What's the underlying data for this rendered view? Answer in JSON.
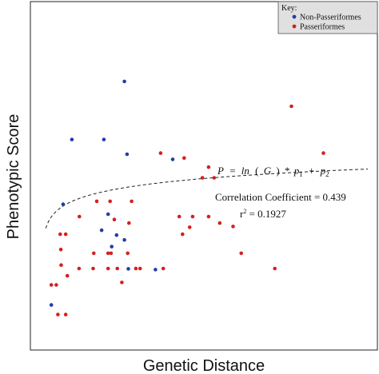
{
  "chart_data": {
    "type": "scatter",
    "title": "",
    "xlabel": "Genetic Distance",
    "ylabel": "Phenotypic Score",
    "xlim": [
      0,
      100
    ],
    "ylim": [
      0,
      100
    ],
    "grid": false,
    "legend": {
      "title": "Key:",
      "position": "top-right",
      "entries": [
        {
          "label": "Non-Passeriformes",
          "color": "#1f3fa8"
        },
        {
          "label": "Passeriformes",
          "color": "#d42020"
        }
      ]
    },
    "series": [
      {
        "name": "Non-Passeriformes",
        "color": "#1f3fa8",
        "points": [
          [
            25.4,
            88.1
          ],
          [
            9.3,
            66.4
          ],
          [
            19.1,
            66.4
          ],
          [
            26.2,
            60.9
          ],
          [
            40.2,
            59.0
          ],
          [
            6.6,
            42.2
          ],
          [
            20.4,
            38.5
          ],
          [
            18.4,
            32.5
          ],
          [
            23.0,
            30.7
          ],
          [
            25.4,
            28.9
          ],
          [
            21.5,
            26.4
          ],
          [
            26.6,
            18.1
          ],
          [
            34.9,
            17.8
          ],
          [
            3.0,
            4.6
          ]
        ]
      },
      {
        "name": "Passeriformes",
        "color": "#d42020",
        "points": [
          [
            76.6,
            78.8
          ],
          [
            36.5,
            61.3
          ],
          [
            43.7,
            59.5
          ],
          [
            86.4,
            61.3
          ],
          [
            51.2,
            56.1
          ],
          [
            49.3,
            52.1
          ],
          [
            52.9,
            52.1
          ],
          [
            16.9,
            43.3
          ],
          [
            21.0,
            43.3
          ],
          [
            27.6,
            43.3
          ],
          [
            42.2,
            37.6
          ],
          [
            46.3,
            37.6
          ],
          [
            51.2,
            37.6
          ],
          [
            11.6,
            37.6
          ],
          [
            22.3,
            36.5
          ],
          [
            26.8,
            35.2
          ],
          [
            45.4,
            33.6
          ],
          [
            54.6,
            35.2
          ],
          [
            58.7,
            33.9
          ],
          [
            5.7,
            31.0
          ],
          [
            7.4,
            31.0
          ],
          [
            43.2,
            31.0
          ],
          [
            5.9,
            25.3
          ],
          [
            16.0,
            23.9
          ],
          [
            20.4,
            23.9
          ],
          [
            21.3,
            23.9
          ],
          [
            26.4,
            23.9
          ],
          [
            61.2,
            23.9
          ],
          [
            6.0,
            19.5
          ],
          [
            11.5,
            18.2
          ],
          [
            15.8,
            18.2
          ],
          [
            20.4,
            18.2
          ],
          [
            23.2,
            18.2
          ],
          [
            28.9,
            18.2
          ],
          [
            30.2,
            18.2
          ],
          [
            37.3,
            18.2
          ],
          [
            71.5,
            18.2
          ],
          [
            7.9,
            15.5
          ],
          [
            24.6,
            13.0
          ],
          [
            3.0,
            12.1
          ],
          [
            4.5,
            12.1
          ],
          [
            5.0,
            1.0
          ],
          [
            7.4,
            1.0
          ]
        ]
      }
    ],
    "fit_curve": {
      "form": "log",
      "equation": "P = ln ( G ) * p1 + p2",
      "p1": 5.1,
      "p2": 31.9,
      "x_range": [
        1.3,
        100
      ]
    },
    "annotations": {
      "equation_text": {
        "P": "P",
        "eq": "=",
        "ln": "ln",
        "lp": "(",
        "G": "G",
        "rp": ")",
        "times": "*",
        "p": "p",
        "sub1": "1",
        "plus": "+",
        "sub2": "2"
      },
      "correlation": "Correlation Coefficient = 0.439",
      "r2_prefix": "r",
      "r2_sup": "2",
      "r2_value": " = 0.1927"
    }
  }
}
